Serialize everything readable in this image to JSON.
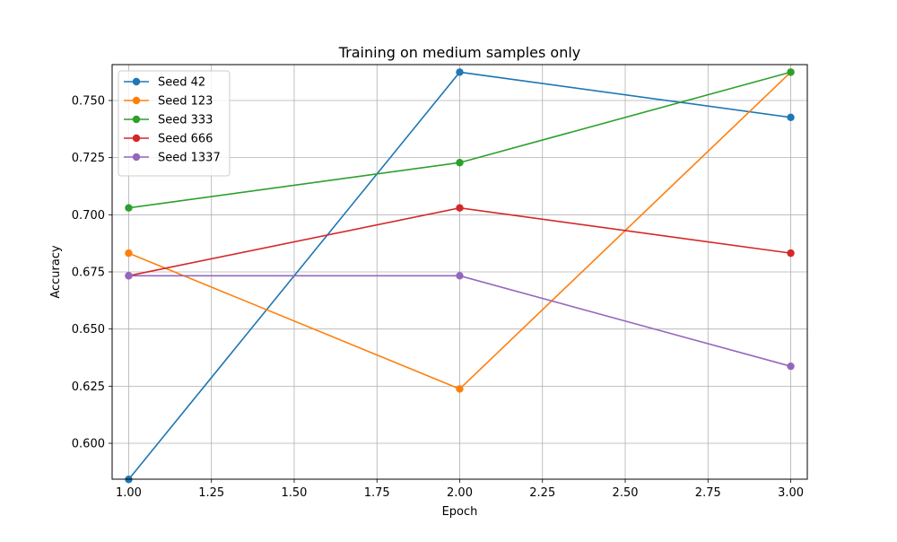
{
  "chart_data": {
    "type": "line",
    "title": "Training on medium samples only",
    "xlabel": "Epoch",
    "ylabel": "Accuracy",
    "x": [
      1.0,
      2.0,
      3.0
    ],
    "xlim": [
      0.95,
      3.05
    ],
    "ylim": [
      0.5843,
      0.7657
    ],
    "xticks": [
      1.0,
      1.25,
      1.5,
      1.75,
      2.0,
      2.25,
      2.5,
      2.75,
      3.0
    ],
    "xtick_labels": [
      "1.00",
      "1.25",
      "1.50",
      "1.75",
      "2.00",
      "2.25",
      "2.50",
      "2.75",
      "3.00"
    ],
    "yticks": [
      0.6,
      0.625,
      0.65,
      0.675,
      0.7,
      0.725,
      0.75
    ],
    "ytick_labels": [
      "0.600",
      "0.625",
      "0.650",
      "0.675",
      "0.700",
      "0.725",
      "0.750"
    ],
    "grid": true,
    "legend_position": "top-left",
    "series": [
      {
        "name": "Seed 42",
        "color": "#1f77b4",
        "values": [
          0.5842,
          0.7624,
          0.7426
        ]
      },
      {
        "name": "Seed 123",
        "color": "#ff7f0e",
        "values": [
          0.6832,
          0.6238,
          0.7624
        ]
      },
      {
        "name": "Seed 333",
        "color": "#2ca02c",
        "values": [
          0.703,
          0.7228,
          0.7624
        ]
      },
      {
        "name": "Seed 666",
        "color": "#d62728",
        "values": [
          0.6733,
          0.703,
          0.6832
        ]
      },
      {
        "name": "Seed 1337",
        "color": "#9467bd",
        "values": [
          0.6733,
          0.6733,
          0.6337
        ]
      }
    ]
  }
}
